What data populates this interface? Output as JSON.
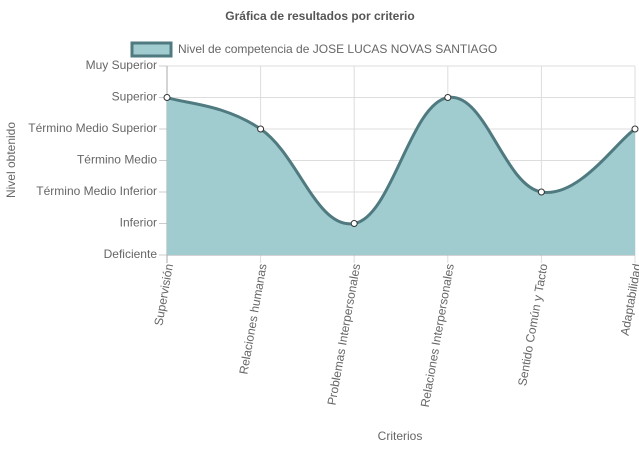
{
  "chart_data": {
    "type": "line",
    "title": "Gráfica de resultados por criterio",
    "x_label": "Criterios",
    "y_label": "Nivel obtenido",
    "categories": [
      "Supervisión",
      "Relaciones humanas",
      "Problemas Interpersonales",
      "Relaciones Interpersonales",
      "Sentido Común y Tacto",
      "Adaptabilidad"
    ],
    "series": [
      {
        "name": "Nivel de competencia de JOSE LUCAS NOVAS SANTIAGO",
        "color": "#4f7a80",
        "fill": "#a0ccd0",
        "values": [
          5,
          4,
          1,
          5,
          2,
          4
        ]
      }
    ],
    "ylim": [
      0,
      6
    ],
    "yticks": [
      {
        "value": 0,
        "label": "Deficiente"
      },
      {
        "value": 1,
        "label": "Inferior"
      },
      {
        "value": 2,
        "label": "Término Medio Inferior"
      },
      {
        "value": 3,
        "label": "Término Medio"
      },
      {
        "value": 4,
        "label": "Término Medio Superior"
      },
      {
        "value": 5,
        "label": "Superior"
      },
      {
        "value": 6,
        "label": "Muy Superior"
      }
    ],
    "grid": true
  }
}
